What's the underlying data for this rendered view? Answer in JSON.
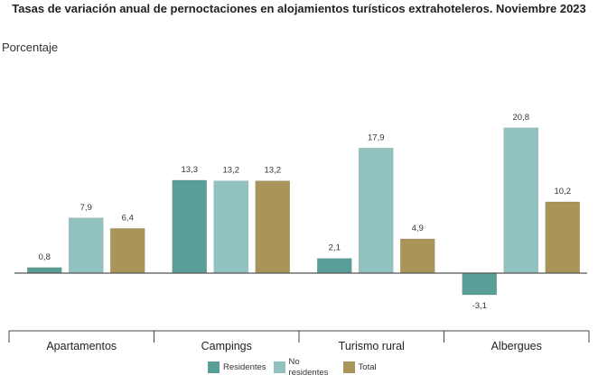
{
  "chart_data": {
    "type": "bar",
    "title": "Tasas de variación anual de pernoctaciones en alojamientos turísticos extrahoteleros. Noviembre 2023",
    "ylabel": "Porcentaje",
    "xlabel": "",
    "categories": [
      "Apartamentos",
      "Campings",
      "Turismo rural",
      "Albergues"
    ],
    "series": [
      {
        "name": "Residentes",
        "color": "#5a9e98",
        "values": [
          0.8,
          13.3,
          2.1,
          -3.1
        ],
        "labels": [
          "0,8",
          "13,3",
          "2,1",
          "-3,1"
        ]
      },
      {
        "name": "No residentes",
        "color": "#92c2c0",
        "values": [
          7.9,
          13.2,
          17.9,
          20.8
        ],
        "labels": [
          "7,9",
          "13,2",
          "17,9",
          "20,8"
        ]
      },
      {
        "name": "Total",
        "color": "#a9955a",
        "values": [
          6.4,
          13.2,
          4.9,
          10.2
        ],
        "labels": [
          "6,4",
          "13,2",
          "4,9",
          "10,2"
        ]
      }
    ],
    "ylim": [
      -5,
      26
    ],
    "grid": false,
    "legend_position": "bottom"
  }
}
